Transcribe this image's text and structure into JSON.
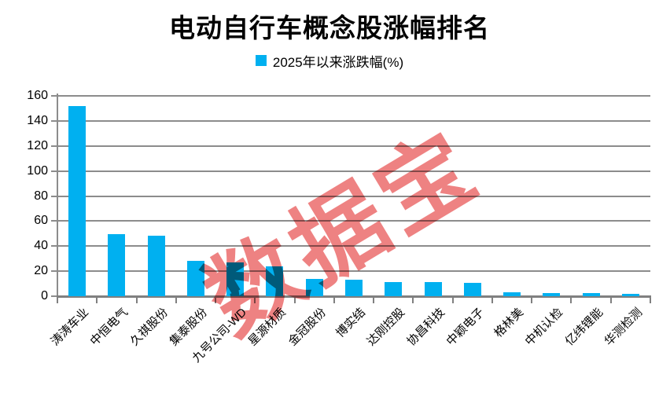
{
  "chart_data": {
    "type": "bar",
    "title": "电动自行车概念股涨幅排名",
    "legend_label": "2025年以来涨跌幅(%)",
    "legend_position": "top",
    "watermark": "数据宝",
    "categories": [
      "涛涛车业",
      "中恒电气",
      "久祺股份",
      "集泰股份",
      "九号公司-WD",
      "星源材质",
      "金冠股份",
      "博实结",
      "达刚控股",
      "协昌科技",
      "中颖电子",
      "格林美",
      "中机认检",
      "亿纬锂能",
      "华测检测"
    ],
    "values": [
      151.9,
      49.5,
      48.3,
      28.5,
      26.8,
      23.7,
      14.0,
      13.3,
      11.2,
      11.0,
      10.4,
      3.4,
      2.7,
      2.2,
      2.0
    ],
    "xlabel": "",
    "ylabel": "",
    "ylim": [
      0,
      160
    ],
    "yticks": [
      0,
      20,
      40,
      60,
      80,
      100,
      120,
      140,
      160
    ],
    "grid": true,
    "colors": {
      "bar": "#00B0F0",
      "grid": "#8C8C8C",
      "axis": "#808080",
      "watermark": "#EE8282",
      "text": "#000000"
    }
  }
}
